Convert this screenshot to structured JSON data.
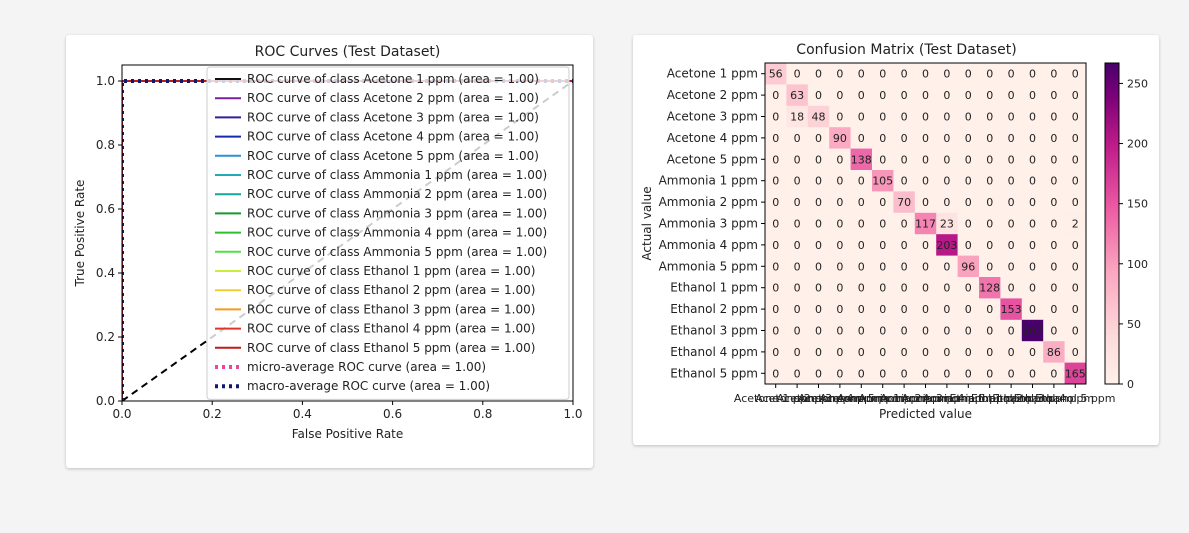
{
  "charts": [
    {
      "type": "line",
      "title": "ROC Curves (Test Dataset)",
      "xlabel": "False Positive Rate",
      "ylabel": "True Positive Rate",
      "xlim": [
        0.0,
        1.0
      ],
      "ylim": [
        0.0,
        1.05
      ],
      "xticks": [
        "0.0",
        "0.2",
        "0.4",
        "0.6",
        "0.8",
        "1.0"
      ],
      "yticks": [
        "0.0",
        "0.2",
        "0.4",
        "0.6",
        "0.8",
        "1.0"
      ],
      "legend_position": "upper-right",
      "grid": false,
      "series": [
        {
          "name": "ROC curve of class Acetone 1 ppm (area = 1.00)",
          "color": "#111111",
          "x": [
            0,
            0,
            1
          ],
          "y": [
            0,
            1,
            1
          ]
        },
        {
          "name": "ROC curve of class Acetone 2 ppm (area = 1.00)",
          "color": "#7b1fa2",
          "x": [
            0,
            0,
            1
          ],
          "y": [
            0,
            1,
            1
          ]
        },
        {
          "name": "ROC curve of class Acetone 3 ppm (area = 1.00)",
          "color": "#3a1a9a",
          "x": [
            0,
            0,
            1
          ],
          "y": [
            0,
            1,
            1
          ]
        },
        {
          "name": "ROC curve of class Acetone 4 ppm (area = 1.00)",
          "color": "#1a28b0",
          "x": [
            0,
            0,
            1
          ],
          "y": [
            0,
            1,
            1
          ]
        },
        {
          "name": "ROC curve of class Acetone 5 ppm (area = 1.00)",
          "color": "#2f8fd8",
          "x": [
            0,
            0,
            1
          ],
          "y": [
            0,
            1,
            1
          ]
        },
        {
          "name": "ROC curve of class Ammonia 1 ppm (area = 1.00)",
          "color": "#23a8b8",
          "x": [
            0,
            0,
            1
          ],
          "y": [
            0,
            1,
            1
          ]
        },
        {
          "name": "ROC curve of class Ammonia 2 ppm (area = 1.00)",
          "color": "#1aa59a",
          "x": [
            0,
            0,
            1
          ],
          "y": [
            0,
            1,
            1
          ]
        },
        {
          "name": "ROC curve of class Ammonia 3 ppm (area = 1.00)",
          "color": "#149a2e",
          "x": [
            0,
            0,
            1
          ],
          "y": [
            0,
            1,
            1
          ]
        },
        {
          "name": "ROC curve of class Ammonia 4 ppm (area = 1.00)",
          "color": "#2cc12c",
          "x": [
            0,
            0,
            1
          ],
          "y": [
            0,
            1,
            1
          ]
        },
        {
          "name": "ROC curve of class Ammonia 5 ppm (area = 1.00)",
          "color": "#55e044",
          "x": [
            0,
            0,
            1
          ],
          "y": [
            0,
            1,
            1
          ]
        },
        {
          "name": "ROC curve of class Ethanol 1 ppm (area = 1.00)",
          "color": "#c6ee3a",
          "x": [
            0,
            0,
            1
          ],
          "y": [
            0,
            1,
            1
          ]
        },
        {
          "name": "ROC curve of class Ethanol 2 ppm (area = 1.00)",
          "color": "#f0d028",
          "x": [
            0,
            0,
            1
          ],
          "y": [
            0,
            1,
            1
          ]
        },
        {
          "name": "ROC curve of class Ethanol 3 ppm (area = 1.00)",
          "color": "#f59a22",
          "x": [
            0,
            0,
            1
          ],
          "y": [
            0,
            1,
            1
          ]
        },
        {
          "name": "ROC curve of class Ethanol 4 ppm (area = 1.00)",
          "color": "#e0342a",
          "x": [
            0,
            0,
            1
          ],
          "y": [
            0,
            1,
            1
          ]
        },
        {
          "name": "ROC curve of class Ethanol 5 ppm (area = 1.00)",
          "color": "#c01a1a",
          "x": [
            0,
            0,
            1
          ],
          "y": [
            0,
            1,
            1
          ]
        },
        {
          "name": "micro-average ROC curve (area = 1.00)",
          "color": "#e8489a",
          "style": "dotted",
          "x": [
            0,
            0,
            1
          ],
          "y": [
            0,
            1,
            1
          ]
        },
        {
          "name": "macro-average ROC curve (area = 1.00)",
          "color": "#101a6b",
          "style": "dotted",
          "x": [
            0,
            0,
            1
          ],
          "y": [
            0,
            1,
            1
          ]
        }
      ],
      "reference_line": {
        "x": [
          0,
          1
        ],
        "y": [
          0,
          1
        ],
        "color": "#000000",
        "style": "dashed"
      }
    },
    {
      "type": "heatmap",
      "title": "Confusion Matrix (Test Dataset)",
      "xlabel": "Predicted value",
      "ylabel": "Actual value",
      "categories": [
        "Acetone 1 ppm",
        "Acetone 2 ppm",
        "Acetone 3 ppm",
        "Acetone 4 ppm",
        "Acetone 5 ppm",
        "Ammonia 1 ppm",
        "Ammonia 2 ppm",
        "Ammonia 3 ppm",
        "Ammonia 4 ppm",
        "Ammonia 5 ppm",
        "Ethanol 1 ppm",
        "Ethanol 2 ppm",
        "Ethanol 3 ppm",
        "Ethanol 4 ppm",
        "Ethanol 5 ppm"
      ],
      "matrix": [
        [
          56,
          0,
          0,
          0,
          0,
          0,
          0,
          0,
          0,
          0,
          0,
          0,
          0,
          0,
          0
        ],
        [
          0,
          63,
          0,
          0,
          0,
          0,
          0,
          0,
          0,
          0,
          0,
          0,
          0,
          0,
          0
        ],
        [
          0,
          18,
          48,
          0,
          0,
          0,
          0,
          0,
          0,
          0,
          0,
          0,
          0,
          0,
          0
        ],
        [
          0,
          0,
          0,
          90,
          0,
          0,
          0,
          0,
          0,
          0,
          0,
          0,
          0,
          0,
          0
        ],
        [
          0,
          0,
          0,
          0,
          138,
          0,
          0,
          0,
          0,
          0,
          0,
          0,
          0,
          0,
          0
        ],
        [
          0,
          0,
          0,
          0,
          0,
          105,
          0,
          0,
          0,
          0,
          0,
          0,
          0,
          0,
          0
        ],
        [
          0,
          0,
          0,
          0,
          0,
          0,
          70,
          0,
          0,
          0,
          0,
          0,
          0,
          0,
          0
        ],
        [
          0,
          0,
          0,
          0,
          0,
          0,
          0,
          117,
          23,
          0,
          0,
          0,
          0,
          0,
          2
        ],
        [
          0,
          0,
          0,
          0,
          0,
          0,
          0,
          0,
          203,
          0,
          0,
          0,
          0,
          0,
          0
        ],
        [
          0,
          0,
          0,
          0,
          0,
          0,
          0,
          0,
          0,
          96,
          0,
          0,
          0,
          0,
          0
        ],
        [
          0,
          0,
          0,
          0,
          0,
          0,
          0,
          0,
          0,
          0,
          128,
          0,
          0,
          0,
          0
        ],
        [
          0,
          0,
          0,
          0,
          0,
          0,
          0,
          0,
          0,
          0,
          0,
          153,
          0,
          0,
          0
        ],
        [
          0,
          0,
          0,
          0,
          0,
          0,
          0,
          0,
          0,
          0,
          0,
          0,
          267,
          0,
          0
        ],
        [
          0,
          0,
          0,
          0,
          0,
          0,
          0,
          0,
          0,
          0,
          0,
          0,
          0,
          86,
          0
        ],
        [
          0,
          0,
          0,
          0,
          0,
          0,
          0,
          0,
          0,
          0,
          0,
          0,
          0,
          0,
          165
        ]
      ],
      "colormap": "RdPu",
      "colorbar": {
        "min": 0,
        "max": 267,
        "ticks": [
          0,
          50,
          100,
          150,
          200,
          250
        ]
      }
    }
  ]
}
